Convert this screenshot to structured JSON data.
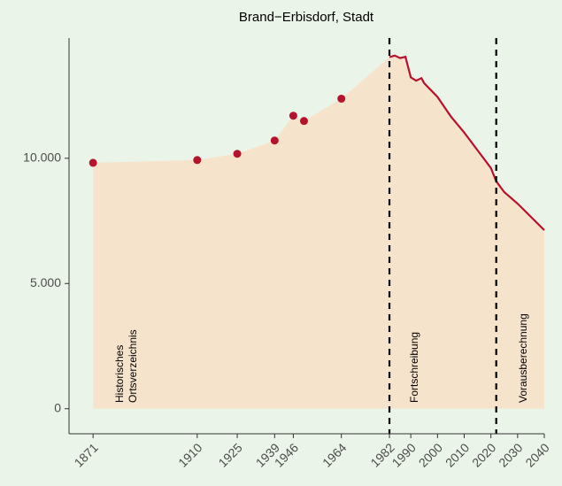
{
  "chart_data": {
    "type": "area",
    "title": "Brand−Erbisdorf, Stadt",
    "annotations": [
      [
        "Historisches",
        "Ortsverzeichnis"
      ],
      "Fortschreibung",
      "Vorausberechnung"
    ],
    "series": [
      {
        "color": "#b5122e",
        "x": [
          1871,
          1910,
          1925,
          1939,
          1946,
          1950,
          1964
        ],
        "values": [
          9820,
          9930,
          10180,
          10710,
          11700,
          11490,
          12380
        ]
      },
      {
        "color": "#b5122e",
        "x": [
          1982,
          1984,
          1986,
          1988,
          1990,
          1992,
          1994,
          1995,
          2000,
          2005,
          2010,
          2015,
          2020,
          2022,
          2025,
          2030,
          2035,
          2040
        ],
        "values": [
          14040,
          14100,
          14000,
          14050,
          13230,
          13100,
          13200,
          13000,
          12450,
          11670,
          11030,
          10320,
          9610,
          9080,
          8650,
          8190,
          7660,
          7130
        ]
      }
    ],
    "area_color": "#f6e3cb",
    "vlines": [
      1982,
      2022
    ],
    "xlim": [
      1862,
      2040
    ],
    "xticks": [
      1871,
      1910,
      1925,
      1939,
      1946,
      1964,
      1982,
      1990,
      2000,
      2010,
      2020,
      2030,
      2040
    ],
    "ylim": [
      -1000,
      14800
    ],
    "yticks": [
      {
        "value": 0,
        "label": "0"
      },
      {
        "value": 5000,
        "label": "5.000"
      },
      {
        "value": 10000,
        "label": "10.000"
      }
    ]
  }
}
